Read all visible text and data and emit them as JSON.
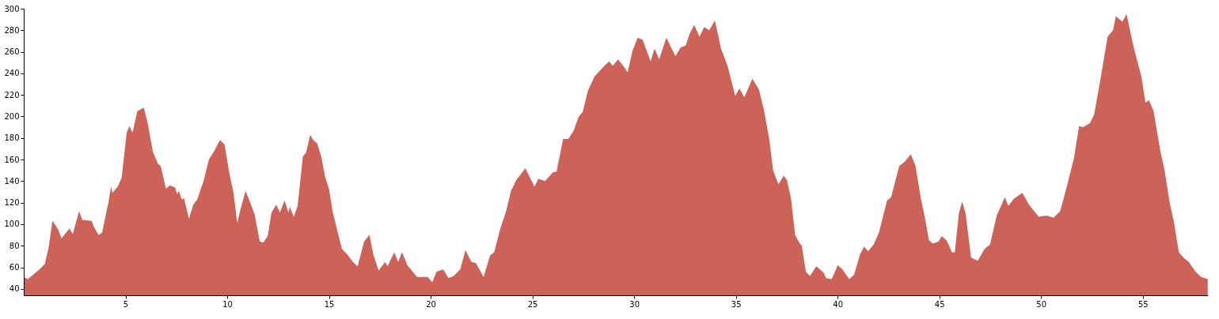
{
  "chart_data": {
    "type": "area",
    "color": "#cd6259",
    "x": [
      0,
      0.2,
      0.77,
      1.03,
      1.22,
      1.41,
      1.67,
      1.86,
      2.24,
      2.41,
      2.72,
      2.88,
      3.33,
      3.46,
      3.68,
      3.85,
      4.17,
      4.29,
      4.36,
      4.62,
      4.81,
      5.06,
      5.19,
      5.35,
      5.58,
      5.9,
      6.09,
      6.35,
      6.6,
      6.73,
      6.99,
      7.18,
      7.44,
      7.54,
      7.63,
      7.76,
      7.88,
      8.12,
      8.33,
      8.53,
      8.85,
      9.1,
      9.36,
      9.64,
      9.87,
      10.1,
      10.32,
      10.49,
      10.64,
      10.9,
      11.09,
      11.35,
      11.6,
      11.77,
      11.99,
      12.18,
      12.41,
      12.59,
      12.82,
      13.01,
      13.08,
      13.27,
      13.46,
      13.72,
      13.87,
      14.08,
      14.23,
      14.42,
      14.62,
      14.81,
      15.0,
      15.19,
      15.45,
      15.64,
      15.9,
      16.22,
      16.41,
      16.73,
      16.99,
      17.18,
      17.44,
      17.76,
      17.88,
      18.21,
      18.4,
      18.59,
      18.85,
      19.33,
      19.85,
      20.08,
      20.29,
      20.62,
      20.87,
      21.13,
      21.45,
      21.71,
      22.0,
      22.22,
      22.6,
      22.92,
      23.12,
      23.44,
      23.69,
      23.95,
      24.21,
      24.65,
      25.1,
      25.29,
      25.62,
      26.0,
      26.19,
      26.51,
      26.77,
      27.03,
      27.28,
      27.47,
      27.73,
      28.05,
      28.44,
      28.76,
      28.95,
      29.21,
      29.46,
      29.68,
      29.92,
      30.17,
      30.42,
      30.81,
      31.0,
      31.23,
      31.58,
      32.03,
      32.28,
      32.54,
      32.73,
      32.95,
      33.21,
      33.44,
      33.69,
      33.97,
      34.27,
      34.59,
      34.97,
      35.17,
      35.42,
      35.81,
      36.13,
      36.38,
      36.64,
      36.83,
      37.09,
      37.35,
      37.51,
      37.71,
      37.91,
      38.11,
      38.24,
      38.44,
      38.64,
      38.95,
      39.31,
      39.44,
      39.71,
      40.01,
      40.24,
      40.57,
      40.81,
      41.1,
      41.3,
      41.5,
      41.77,
      42.03,
      42.43,
      42.63,
      43.03,
      43.3,
      43.6,
      43.83,
      44.1,
      44.3,
      44.49,
      44.69,
      44.96,
      45.12,
      45.36,
      45.62,
      45.76,
      45.96,
      46.12,
      46.29,
      46.56,
      46.89,
      47.22,
      47.49,
      47.82,
      48.22,
      48.39,
      48.68,
      49.08,
      49.41,
      49.88,
      50.28,
      50.61,
      50.94,
      51.28,
      51.61,
      51.87,
      52.07,
      52.41,
      52.61,
      52.94,
      53.27,
      53.54,
      53.67,
      54.0,
      54.2,
      54.54,
      54.93,
      55.13,
      55.31,
      55.53,
      55.86,
      56.06,
      56.33,
      56.53,
      56.77,
      57.0,
      57.26,
      57.59,
      57.86,
      58.19
    ],
    "values": [
      51,
      49,
      58,
      63,
      78,
      103,
      96,
      87,
      96,
      91,
      112,
      104,
      103,
      97,
      90,
      92,
      121,
      135,
      129,
      135,
      143,
      185,
      191,
      185,
      205,
      208,
      194,
      167,
      156,
      154,
      133,
      136,
      134,
      128,
      131,
      123,
      124,
      105,
      118,
      123,
      141,
      160,
      168,
      178,
      174,
      148,
      128,
      101,
      113,
      131,
      122,
      109,
      84,
      83,
      89,
      111,
      118,
      111,
      122,
      111,
      116,
      107,
      117,
      163,
      166,
      183,
      178,
      175,
      163,
      144,
      133,
      111,
      91,
      77,
      72,
      64,
      61,
      84,
      90,
      72,
      57,
      65,
      61,
      74,
      65,
      74,
      62,
      51,
      51,
      46,
      56,
      58,
      50,
      52,
      58,
      76,
      65,
      64,
      51,
      71,
      74,
      97,
      111,
      131,
      141,
      152,
      135,
      142,
      140,
      148,
      149,
      179,
      179,
      187,
      200,
      204,
      224,
      237,
      245,
      251,
      247,
      253,
      247,
      241,
      261,
      273,
      271,
      251,
      263,
      253,
      273,
      256,
      264,
      266,
      277,
      285,
      274,
      283,
      280,
      289,
      263,
      247,
      219,
      226,
      218,
      235,
      225,
      206,
      179,
      150,
      137,
      145,
      141,
      124,
      90,
      83,
      80,
      56,
      52,
      61,
      55,
      50,
      49,
      62,
      58,
      49,
      53,
      72,
      79,
      75,
      81,
      92,
      122,
      125,
      154,
      158,
      165,
      154,
      123,
      105,
      85,
      82,
      84,
      89,
      85,
      74,
      74,
      110,
      121,
      110,
      69,
      66,
      77,
      81,
      108,
      125,
      117,
      124,
      129,
      118,
      107,
      108,
      106,
      112,
      136,
      161,
      191,
      190,
      194,
      202,
      237,
      274,
      280,
      293,
      288,
      295,
      265,
      237,
      213,
      215,
      205,
      168,
      151,
      119,
      102,
      74,
      69,
      65,
      56,
      51,
      49
    ],
    "xlim": [
      0,
      58.2
    ],
    "xticks": [
      5,
      10,
      15,
      20,
      25,
      30,
      35,
      40,
      45,
      50,
      55
    ],
    "ylim": [
      34,
      300
    ],
    "yticks": [
      40,
      60,
      80,
      100,
      120,
      140,
      160,
      180,
      200,
      220,
      240,
      260,
      280,
      300
    ],
    "grid": false
  }
}
